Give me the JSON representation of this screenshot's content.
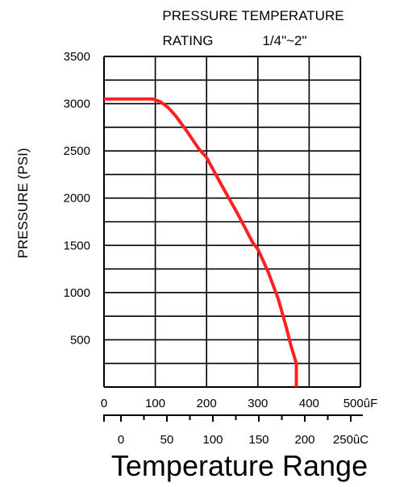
{
  "chart_data": {
    "type": "line",
    "title_line1": "PRESSURE TEMPERATURE",
    "title_rating": "RATING",
    "title_size": "1/4\"~2\"",
    "ylabel": "PRESSURE (PSI)",
    "xlabel": "Temperature Range",
    "y_ticks": [
      "500",
      "1000",
      "1500",
      "2000",
      "2500",
      "3000",
      "3500"
    ],
    "y_min": 0,
    "y_max": 3500,
    "grid": true,
    "axis_f": {
      "min": 0,
      "max": 500,
      "ticks": [
        {
          "value": 0,
          "label": "0"
        },
        {
          "value": 100,
          "label": "100"
        },
        {
          "value": 200,
          "label": "200"
        },
        {
          "value": 300,
          "label": "300"
        },
        {
          "value": 400,
          "label": "400"
        },
        {
          "value": 500,
          "label": "500ûF"
        }
      ]
    },
    "axis_c": {
      "ticks": [
        {
          "value": 0,
          "label": "0"
        },
        {
          "value": 50,
          "label": "50"
        },
        {
          "value": 100,
          "label": "100"
        },
        {
          "value": 150,
          "label": "150"
        },
        {
          "value": 200,
          "label": "200"
        },
        {
          "value": 250,
          "label": "250ûC"
        }
      ]
    },
    "series": [
      {
        "color": "#ff2020",
        "x": [
          0,
          95,
          110,
          125,
          140,
          160,
          185,
          200,
          230,
          260,
          290,
          300,
          320,
          340,
          355,
          365,
          375,
          375
        ],
        "y": [
          3050,
          3050,
          3020,
          2960,
          2870,
          2720,
          2520,
          2430,
          2130,
          1840,
          1530,
          1460,
          1220,
          930,
          640,
          430,
          250,
          0
        ]
      }
    ]
  }
}
